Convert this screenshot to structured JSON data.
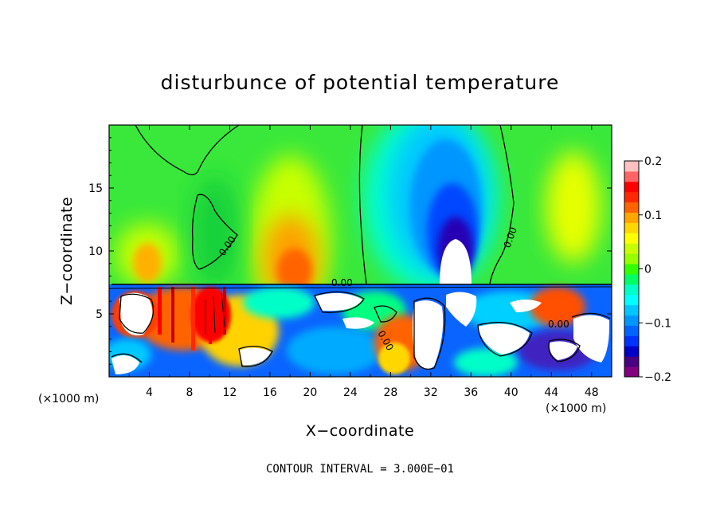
{
  "chart_data": {
    "type": "heatmap",
    "title": "disturbunce of potential temperature",
    "xlabel": "X−coordinate",
    "ylabel": "Z−coordinate",
    "x_unit": "(×1000 m)",
    "x_unit_right": "(×1000 m)",
    "xlim": [
      0,
      50
    ],
    "ylim": [
      0,
      20
    ],
    "x_ticks": [
      4,
      8,
      12,
      16,
      20,
      24,
      28,
      32,
      36,
      40,
      44,
      48
    ],
    "x_tick_labels": [
      "4",
      "8",
      "12",
      "16",
      "20",
      "24",
      "28",
      "32",
      "36",
      "40",
      "44",
      "48"
    ],
    "y_ticks": [
      5,
      10,
      15
    ],
    "y_tick_labels": [
      "5",
      "10",
      "15"
    ],
    "colorbar": {
      "range": [
        -0.2,
        0.2
      ],
      "ticks": [
        0.2,
        0.1,
        0,
        -0.1,
        -0.2
      ],
      "tick_labels": [
        "0.2",
        "0.1",
        "0",
        "−0.1",
        "−0.2"
      ],
      "colors": [
        "#800080",
        "#4b0082",
        "#0000c8",
        "#0032ff",
        "#0064ff",
        "#0096ff",
        "#00c8ff",
        "#00ffff",
        "#00ffc8",
        "#00ff64",
        "#32ff00",
        "#96ff00",
        "#c8ff00",
        "#ffff00",
        "#ffd700",
        "#ffa500",
        "#ff6400",
        "#ff2800",
        "#ff0000",
        "#ff6464",
        "#ffc0c0"
      ]
    },
    "contour_labels": [
      "0.00",
      "0.00",
      "0.00",
      "0.00",
      "0.00"
    ],
    "contour_interval_text": "CONTOUR INTERVAL = 3.000E−01",
    "features": [
      {
        "kind": "cold-bubble",
        "x": 34,
        "z_top": 11,
        "min": -0.2
      },
      {
        "kind": "warm-plume",
        "x": 18,
        "z_top": 13,
        "max": 0.13
      },
      {
        "kind": "warm-plume",
        "x": 46,
        "z_top": 16,
        "max": 0.08
      },
      {
        "kind": "cold-plume",
        "x": 33,
        "z_top": 19,
        "min": -0.1
      },
      {
        "kind": "warm-patch",
        "x": 4,
        "z_top": 10,
        "max": 0.07
      },
      {
        "kind": "turbulent-layer",
        "z_range": [
          0,
          7.2
        ]
      }
    ]
  }
}
